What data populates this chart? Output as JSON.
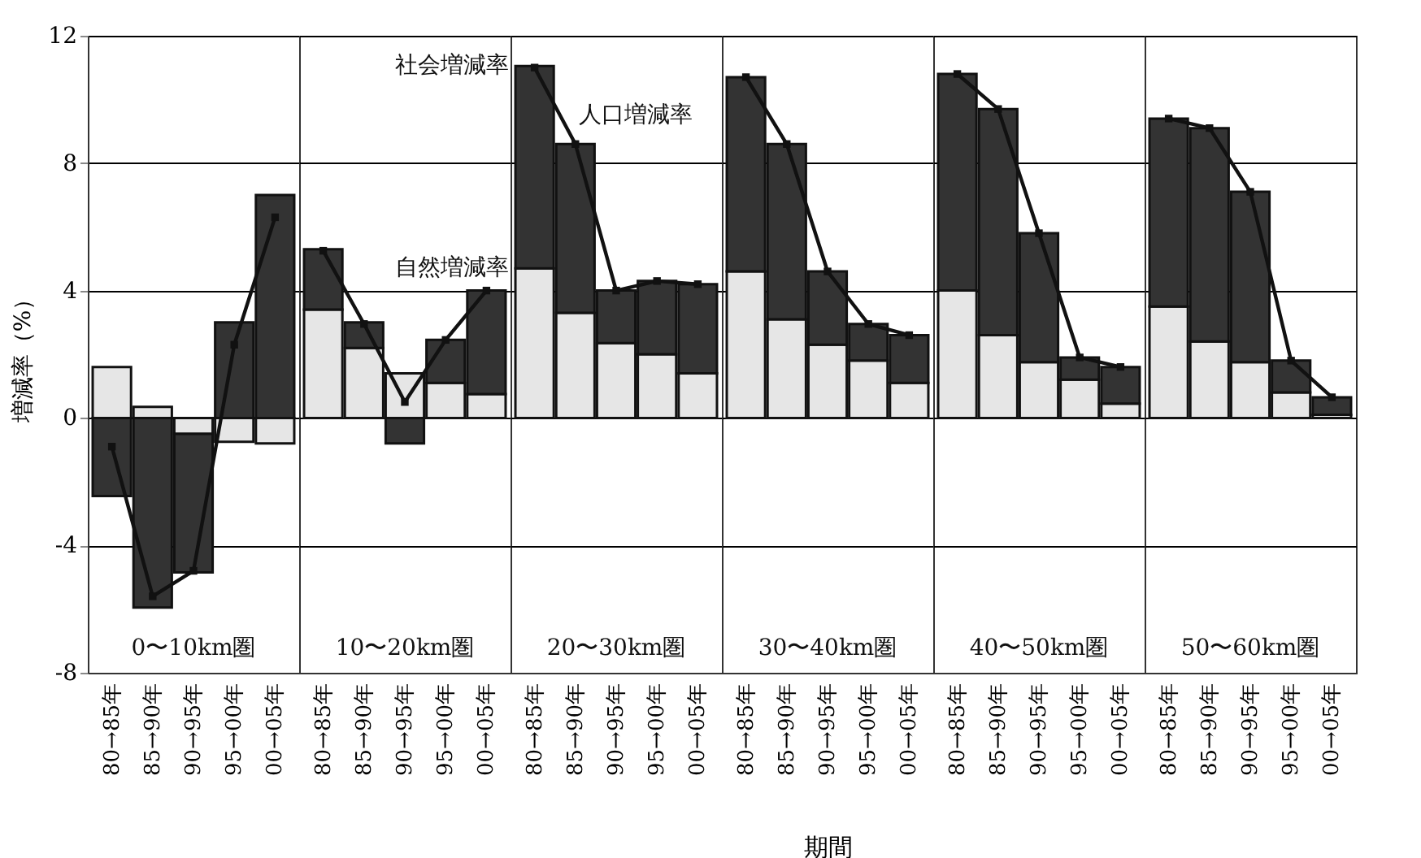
{
  "chart_data": [
    {
      "type": "bar",
      "stacked": true,
      "categories": [
        "80→85年",
        "85→90年",
        "90→95年",
        "95→00年",
        "00→05年"
      ],
      "ylabel": "増減率（%）",
      "annotations": [
        "0〜10km圏"
      ],
      "ylim": [
        -8,
        12
      ],
      "yticks": [
        -8,
        -4,
        0,
        4,
        8,
        12
      ],
      "grid": "y",
      "marker": "square",
      "series": [
        {
          "color": "#e6e6e6",
          "values": [
            1.6,
            0.35,
            -0.5,
            -0.75,
            -0.8
          ]
        },
        {
          "color": "#333333",
          "values": [
            -2.45,
            -5.95,
            -4.35,
            3.0,
            7.0
          ]
        },
        {
          "type": "line",
          "color": "#111111",
          "values": [
            -0.9,
            -5.6,
            -4.8,
            2.3,
            6.3
          ]
        }
      ]
    },
    {
      "type": "bar",
      "stacked": true,
      "categories": [
        "80→85年",
        "85→90年",
        "90→95年",
        "95→00年",
        "00→05年"
      ],
      "annotations": [
        "10〜20km圏"
      ],
      "ylim": [
        -8,
        12
      ],
      "yticks": [
        -8,
        -4,
        0,
        4,
        8,
        12
      ],
      "grid": "y",
      "marker": "square",
      "tick_labels": "x",
      "series": [
        {
          "color": "#e6e6e6",
          "values": [
            3.4,
            2.2,
            1.4,
            1.1,
            0.75
          ]
        },
        {
          "color": "#333333",
          "values": [
            1.9,
            0.8,
            -0.8,
            1.35,
            3.25
          ]
        },
        {
          "type": "line",
          "color": "#111111",
          "values": [
            5.25,
            2.95,
            0.5,
            2.45,
            4.0
          ]
        }
      ]
    },
    {
      "type": "bar",
      "stacked": true,
      "categories": [
        "80→85年",
        "85→90年",
        "90→95年",
        "95→00年",
        "00→05年"
      ],
      "xlabel": "期間",
      "annotations": [
        "20〜30km圏"
      ],
      "ylim": [
        -8,
        12
      ],
      "yticks": [
        -8,
        -4,
        0,
        4,
        8,
        12
      ],
      "grid": "y",
      "marker": "square",
      "tick_labels": "x",
      "series": [
        {
          "name": "自然増減率",
          "color": "#e6e6e6",
          "values": [
            4.7,
            3.3,
            2.35,
            2.0,
            1.4
          ]
        },
        {
          "name": "社会増減率",
          "color": "#333333",
          "values": [
            6.35,
            5.3,
            1.65,
            2.3,
            2.8
          ]
        },
        {
          "type": "line",
          "name": "人口増減率",
          "color": "#111111",
          "values": [
            11.0,
            8.6,
            4.0,
            4.3,
            4.2
          ]
        }
      ]
    },
    {
      "type": "bar",
      "stacked": true,
      "categories": [
        "80→85年",
        "85→90年",
        "90→95年",
        "95→00年",
        "00→05年"
      ],
      "annotations": [
        "30〜40km圏"
      ],
      "ylim": [
        -8,
        12
      ],
      "yticks": [
        -8,
        -4,
        0,
        4,
        8,
        12
      ],
      "grid": "y",
      "marker": "square",
      "tick_labels": "x",
      "series": [
        {
          "color": "#e6e6e6",
          "values": [
            4.6,
            3.1,
            2.3,
            1.8,
            1.1
          ]
        },
        {
          "color": "#333333",
          "values": [
            6.1,
            5.5,
            2.3,
            1.15,
            1.5
          ]
        },
        {
          "type": "line",
          "color": "#111111",
          "values": [
            10.7,
            8.6,
            4.6,
            2.95,
            2.6
          ]
        }
      ]
    },
    {
      "type": "bar",
      "stacked": true,
      "categories": [
        "80→85年",
        "85→90年",
        "90→95年",
        "95→00年",
        "00→05年"
      ],
      "annotations": [
        "40〜50km圏"
      ],
      "ylim": [
        -8,
        12
      ],
      "yticks": [
        -8,
        -4,
        0,
        4,
        8,
        12
      ],
      "grid": "y",
      "marker": "square",
      "tick_labels": "x",
      "series": [
        {
          "color": "#e6e6e6",
          "values": [
            4.0,
            2.6,
            1.75,
            1.2,
            0.45
          ]
        },
        {
          "color": "#333333",
          "values": [
            6.8,
            7.1,
            4.05,
            0.7,
            1.15
          ]
        },
        {
          "type": "line",
          "color": "#111111",
          "values": [
            10.8,
            9.7,
            5.8,
            1.9,
            1.6
          ]
        }
      ]
    },
    {
      "type": "bar",
      "stacked": true,
      "categories": [
        "80→85年",
        "85→90年",
        "90→95年",
        "95→00年",
        "00→05年"
      ],
      "annotations": [
        "50〜60km圏"
      ],
      "ylim": [
        -8,
        12
      ],
      "yticks": [
        -8,
        -4,
        0,
        4,
        8,
        12
      ],
      "grid": "y",
      "marker": "square",
      "tick_labels": "x",
      "series": [
        {
          "color": "#e6e6e6",
          "values": [
            3.5,
            2.4,
            1.75,
            0.8,
            0.1
          ]
        },
        {
          "color": "#333333",
          "values": [
            5.9,
            6.7,
            5.35,
            1.0,
            0.55
          ]
        },
        {
          "type": "line",
          "color": "#111111",
          "values": [
            9.4,
            9.1,
            7.1,
            1.8,
            0.65
          ]
        }
      ]
    }
  ]
}
